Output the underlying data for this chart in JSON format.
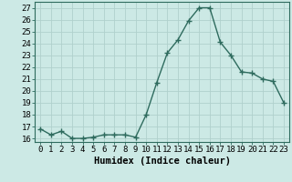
{
  "x": [
    0,
    1,
    2,
    3,
    4,
    5,
    6,
    7,
    8,
    9,
    10,
    11,
    12,
    13,
    14,
    15,
    16,
    17,
    18,
    19,
    20,
    21,
    22,
    23
  ],
  "y": [
    16.8,
    16.3,
    16.6,
    16.0,
    16.0,
    16.1,
    16.3,
    16.3,
    16.3,
    16.1,
    18.0,
    20.7,
    23.2,
    24.3,
    25.9,
    27.0,
    27.0,
    24.1,
    23.0,
    21.6,
    21.5,
    21.0,
    20.8,
    19.0
  ],
  "line_color": "#2e6b5e",
  "marker": "+",
  "markersize": 4,
  "linewidth": 1.0,
  "bg_color": "#cce9e5",
  "grid_color": "#b0d0cc",
  "xlabel": "Humidex (Indice chaleur)",
  "xlabel_fontsize": 7.5,
  "ylabel_ticks": [
    16,
    17,
    18,
    19,
    20,
    21,
    22,
    23,
    24,
    25,
    26,
    27
  ],
  "ylim": [
    15.7,
    27.5
  ],
  "xlim": [
    -0.5,
    23.5
  ],
  "tick_fontsize": 6.5,
  "markeredgewidth": 1.0
}
